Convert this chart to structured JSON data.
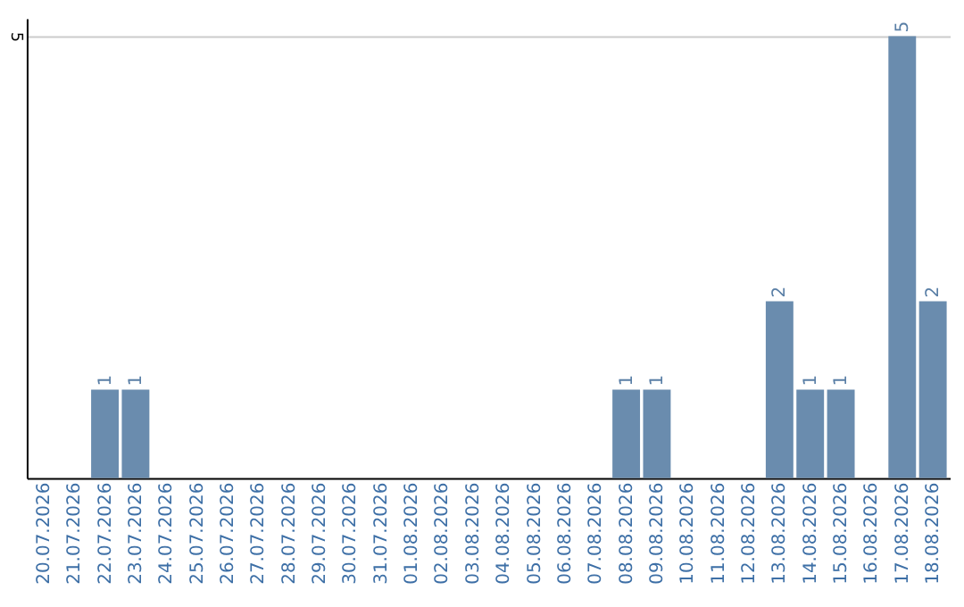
{
  "chart_data": {
    "type": "bar",
    "categories": [
      "20.07.2026",
      "21.07.2026",
      "22.07.2026",
      "23.07.2026",
      "24.07.2026",
      "25.07.2026",
      "26.07.2026",
      "27.07.2026",
      "28.07.2026",
      "29.07.2026",
      "30.07.2026",
      "31.07.2026",
      "01.08.2026",
      "02.08.2026",
      "03.08.2026",
      "04.08.2026",
      "05.08.2026",
      "06.08.2026",
      "07.08.2026",
      "08.08.2026",
      "09.08.2026",
      "10.08.2026",
      "11.08.2026",
      "12.08.2026",
      "13.08.2026",
      "14.08.2026",
      "15.08.2026",
      "16.08.2026",
      "17.08.2026",
      "18.08.2026"
    ],
    "values": [
      0,
      0,
      1,
      1,
      0,
      0,
      0,
      0,
      0,
      0,
      0,
      0,
      0,
      0,
      0,
      0,
      0,
      0,
      0,
      1,
      1,
      0,
      0,
      0,
      2,
      1,
      1,
      0,
      5,
      2
    ],
    "value_labels": [
      null,
      null,
      "1",
      "1",
      null,
      null,
      null,
      null,
      null,
      null,
      null,
      null,
      null,
      null,
      null,
      null,
      null,
      null,
      null,
      "1",
      "1",
      null,
      null,
      null,
      "2",
      "1",
      "1",
      null,
      "5",
      "2"
    ],
    "color": "#6a8cae",
    "ylim": [
      0,
      5.2
    ],
    "yticks": [
      5
    ],
    "grid": "y"
  }
}
